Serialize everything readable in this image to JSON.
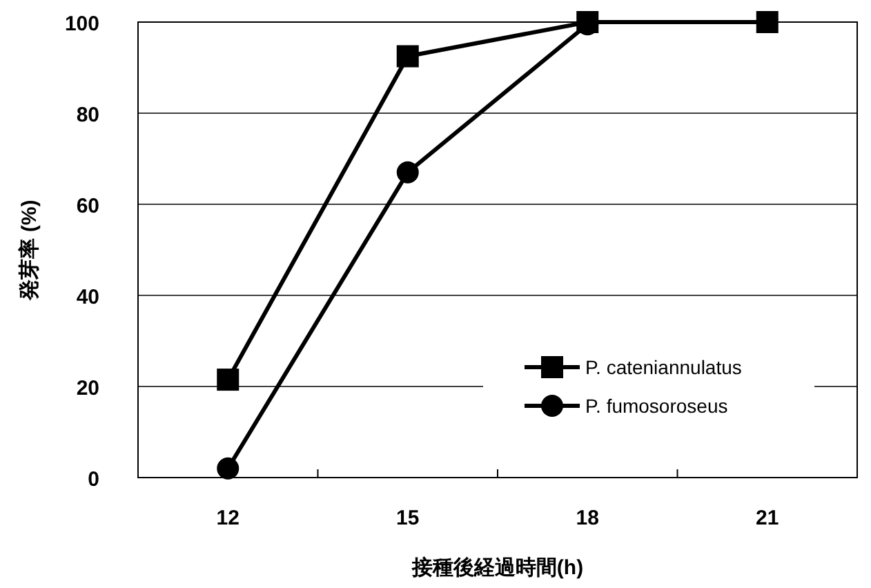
{
  "chart_data": {
    "type": "line",
    "xlabel": "接種後経過時間(h)",
    "ylabel": "発芽率 (%)",
    "categories": [
      "12",
      "15",
      "18",
      "21"
    ],
    "series": [
      {
        "name": "P. cateniannulatus",
        "color": "#000000",
        "marker": "square",
        "values": [
          21.5,
          92.5,
          100,
          100
        ]
      },
      {
        "name": "P. fumosoroseus",
        "color": "#000000",
        "marker": "circle",
        "values": [
          2,
          67,
          99.5,
          null
        ]
      }
    ],
    "ylim": [
      0,
      100
    ],
    "yticks": [
      0,
      20,
      40,
      60,
      80,
      100
    ],
    "grid": "y",
    "legend": "bottom right",
    "line_style": "solid"
  }
}
